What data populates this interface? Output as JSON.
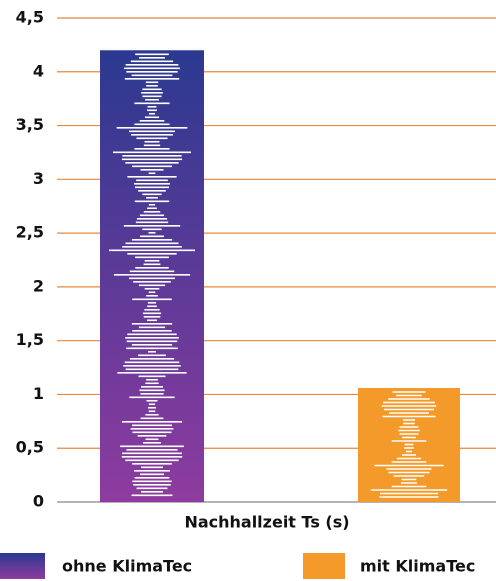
{
  "chart_data": {
    "type": "bar",
    "xlabel": "Nachhallzeit Ts (s)",
    "categories": [
      null
    ],
    "series": [
      {
        "name": "ohne KlimaTec",
        "gradient": [
          "#2b3990",
          "#8e3b9f"
        ],
        "values": [
          4.2
        ]
      },
      {
        "name": "mit KlimaTec",
        "color": "#f39a2b",
        "values": [
          1.06
        ]
      }
    ],
    "ylim": [
      0,
      4.5
    ],
    "yticks": [
      0,
      {
        "value": 0.5,
        "label": "0,5"
      },
      1,
      {
        "value": 1.5,
        "label": "1,5"
      },
      2,
      {
        "value": 2.5,
        "label": "2,5"
      },
      3,
      {
        "value": 3.5,
        "label": "3,5"
      },
      4,
      {
        "value": 4.5,
        "label": "4,5"
      }
    ],
    "grid": true,
    "grid_color": "#e8873a"
  }
}
